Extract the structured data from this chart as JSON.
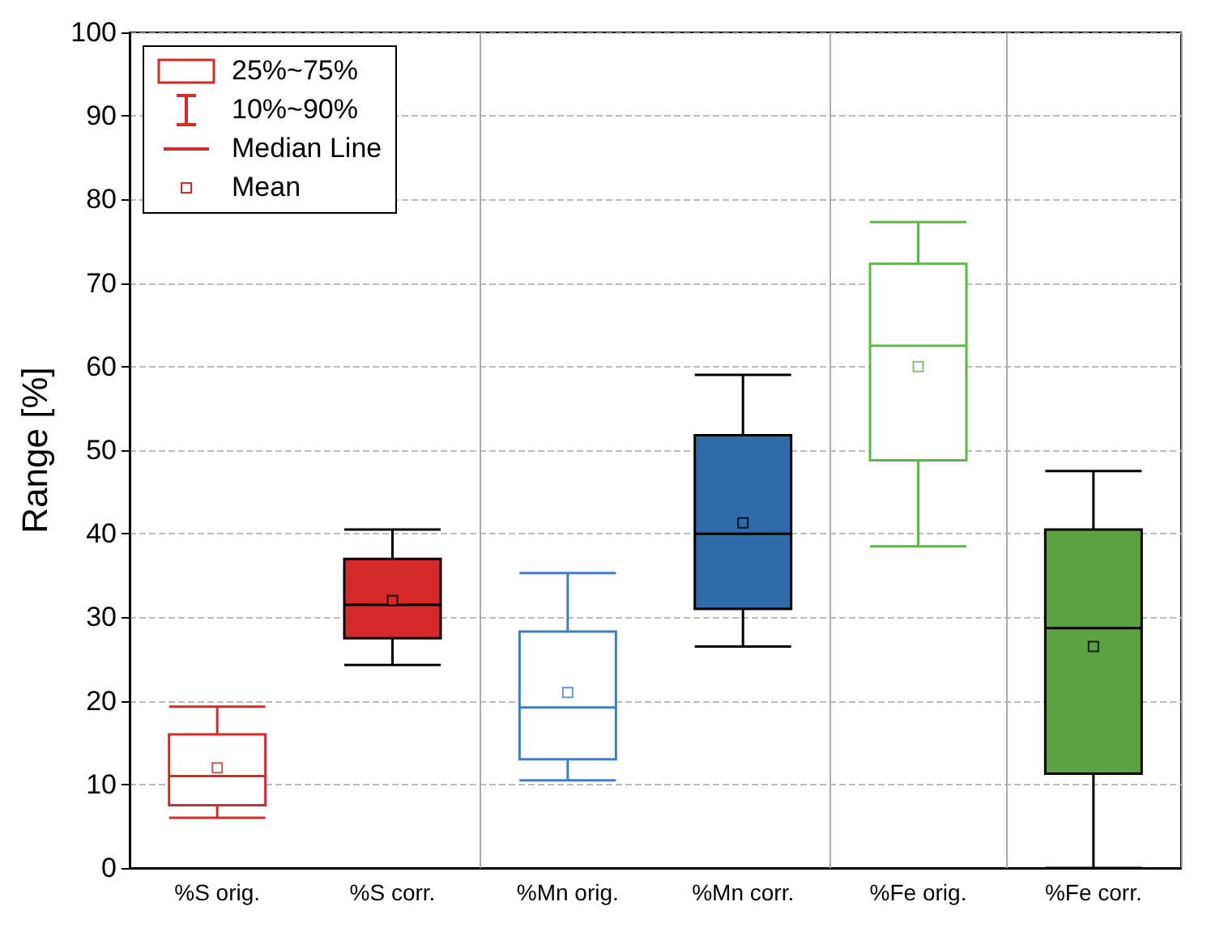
{
  "chart_data": {
    "type": "box",
    "ylabel": "Range [%]",
    "categories": [
      "%S orig.",
      "%S corr.",
      "%Mn orig.",
      "%Mn corr.",
      "%Fe orig.",
      "%Fe corr."
    ],
    "series": [
      {
        "colors": [
          "#d42a2a",
          null,
          "#3f7fc4",
          null,
          "#5cb845",
          null
        ],
        "boxes": [
          {
            "low": 6,
            "q1": 7.5,
            "median": 11,
            "q3": 16,
            "high": 19.3,
            "mean": 12
          },
          null,
          {
            "low": 10.5,
            "q1": 13,
            "median": 19.2,
            "q3": 28.3,
            "high": 35.3,
            "mean": 21
          },
          null,
          {
            "low": 38.5,
            "q1": 48.8,
            "median": 62.5,
            "q3": 72.3,
            "high": 77.3,
            "mean": 60
          },
          null
        ]
      },
      {
        "colors": [
          null,
          "#d42a2a",
          null,
          "#2f6aab",
          null,
          "#5ca242"
        ],
        "boxes": [
          null,
          {
            "low": 24.3,
            "q1": 27.5,
            "median": 31.5,
            "q3": 37,
            "high": 40.5,
            "mean": 32
          },
          null,
          {
            "low": 26.5,
            "q1": 31,
            "median": 40,
            "q3": 51.8,
            "high": 59,
            "mean": 41.3
          },
          null,
          {
            "low": 0,
            "q1": 11.3,
            "median": 28.7,
            "q3": 40.5,
            "high": 47.5,
            "mean": 26.5
          }
        ]
      }
    ],
    "ylim": [
      0,
      100
    ],
    "yticks": [
      0,
      10,
      20,
      30,
      40,
      50,
      60,
      70,
      80,
      90,
      100
    ],
    "grid": true,
    "annotations": [
      "25%~75%",
      "10%~90%",
      "Median Line",
      "Mean"
    ]
  }
}
